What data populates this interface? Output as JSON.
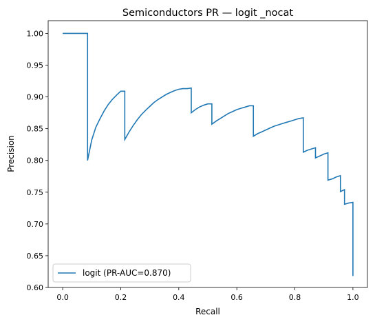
{
  "chart_data": {
    "type": "line",
    "title": "Semiconductors PR — logit _nocat",
    "xlabel": "Recall",
    "ylabel": "Precision",
    "xlim": [
      -0.05,
      1.05
    ],
    "ylim": [
      0.6,
      1.02
    ],
    "xticks": [
      0.0,
      0.2,
      0.4,
      0.6,
      0.8,
      1.0
    ],
    "xtick_labels": [
      "0.0",
      "0.2",
      "0.4",
      "0.6",
      "0.8",
      "1.0"
    ],
    "yticks": [
      0.6,
      0.65,
      0.7,
      0.75,
      0.8,
      0.85,
      0.9,
      0.95,
      1.0
    ],
    "ytick_labels": [
      "0.60",
      "0.65",
      "0.70",
      "0.75",
      "0.80",
      "0.85",
      "0.90",
      "0.95",
      "1.00"
    ],
    "grid": false,
    "legend_position": "lower-left",
    "series": [
      {
        "name": "logit (PR-AUC=0.870)",
        "color": "#1f77b4",
        "x": [
          0.0,
          0.0857,
          0.0857,
          0.1,
          0.114,
          0.129,
          0.143,
          0.157,
          0.171,
          0.186,
          0.2,
          0.214,
          0.214,
          0.229,
          0.243,
          0.257,
          0.271,
          0.286,
          0.3,
          0.314,
          0.329,
          0.343,
          0.357,
          0.371,
          0.386,
          0.4,
          0.414,
          0.429,
          0.443,
          0.443,
          0.457,
          0.471,
          0.486,
          0.5,
          0.514,
          0.514,
          0.529,
          0.543,
          0.557,
          0.571,
          0.586,
          0.6,
          0.614,
          0.629,
          0.643,
          0.657,
          0.657,
          0.671,
          0.686,
          0.7,
          0.714,
          0.729,
          0.743,
          0.757,
          0.771,
          0.786,
          0.8,
          0.814,
          0.829,
          0.829,
          0.843,
          0.857,
          0.871,
          0.871,
          0.886,
          0.9,
          0.914,
          0.914,
          0.929,
          0.943,
          0.957,
          0.957,
          0.971,
          0.971,
          0.986,
          0.986,
          1.0,
          1.0
        ],
        "y": [
          1.0,
          1.0,
          0.8,
          0.832,
          0.852,
          0.866,
          0.878,
          0.888,
          0.896,
          0.903,
          0.909,
          0.909,
          0.833,
          0.845,
          0.855,
          0.864,
          0.872,
          0.879,
          0.885,
          0.891,
          0.896,
          0.9,
          0.904,
          0.907,
          0.91,
          0.912,
          0.913,
          0.913,
          0.914,
          0.875,
          0.88,
          0.884,
          0.887,
          0.889,
          0.889,
          0.857,
          0.862,
          0.866,
          0.87,
          0.874,
          0.877,
          0.88,
          0.882,
          0.884,
          0.886,
          0.886,
          0.838,
          0.842,
          0.845,
          0.848,
          0.851,
          0.854,
          0.856,
          0.858,
          0.86,
          0.862,
          0.864,
          0.866,
          0.867,
          0.813,
          0.816,
          0.818,
          0.82,
          0.804,
          0.807,
          0.81,
          0.812,
          0.769,
          0.771,
          0.774,
          0.776,
          0.751,
          0.754,
          0.731,
          0.733,
          0.733,
          0.734,
          0.618
        ]
      }
    ]
  }
}
